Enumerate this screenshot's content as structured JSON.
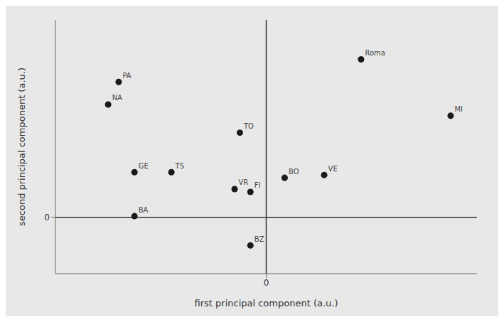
{
  "chart_data": {
    "type": "scatter",
    "title": "",
    "xlabel": "first principal component (a.u.)",
    "ylabel": "second principal component (a.u.)",
    "x": [
      1.8,
      3.5,
      -2.8,
      -3.0,
      -0.5,
      -2.5,
      -1.8,
      0.35,
      -0.6,
      -0.3,
      1.1,
      -2.5,
      -0.3
    ],
    "values": [
      2.8,
      1.8,
      2.4,
      2.0,
      1.5,
      0.8,
      0.8,
      0.7,
      0.5,
      0.45,
      0.75,
      0.02,
      -0.5
    ],
    "labels": [
      "Roma",
      "MI",
      "PA",
      "NA",
      "TO",
      "GE",
      "TS",
      "BO",
      "VR",
      "FI",
      "VE",
      "BA",
      "BZ"
    ],
    "xlim": [
      -4.0,
      4.0
    ],
    "ylim": [
      -1.0,
      3.5
    ],
    "xticks": [
      0
    ],
    "yticks": [
      0
    ],
    "color": "#1a1a1a"
  }
}
